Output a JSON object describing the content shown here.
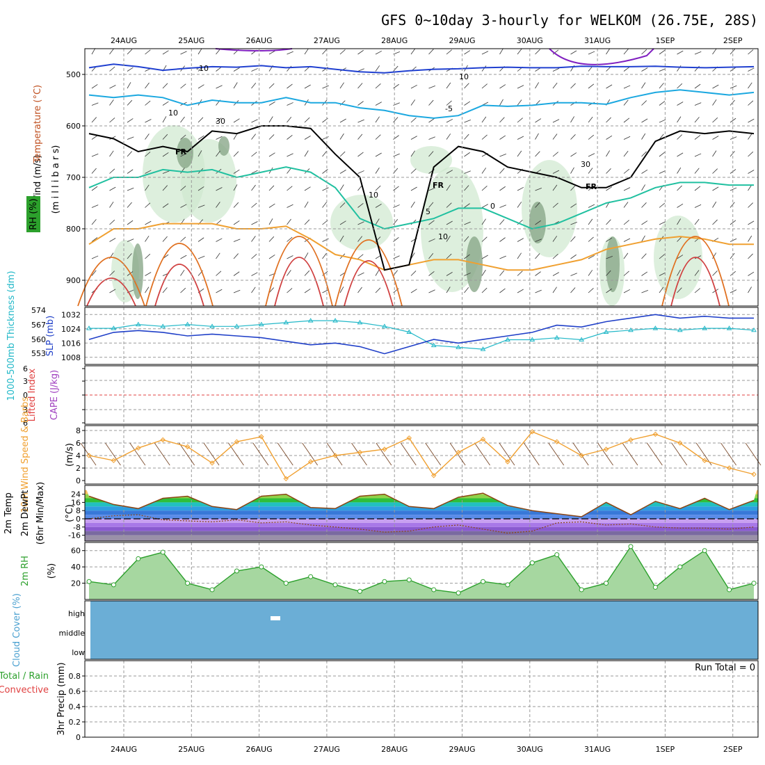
{
  "header": {
    "title": "GFS 0~10day 3-hourly for WELKOM (26.75E, 28S)"
  },
  "dates": [
    "24AUG",
    "25AUG",
    "26AUG",
    "27AUG",
    "28AUG",
    "29AUG",
    "30AUG",
    "31AUG",
    "1SEP",
    "2SEP"
  ],
  "colors": {
    "cloud": "#6baed6",
    "rh_fill": "#2ca02c",
    "slp": "#1f3fc8",
    "thickness": "#22b8c8",
    "wind": "#f0a030",
    "temp_line": "#8b4513"
  },
  "chart_data": [
    {
      "id": "upper-air",
      "type": "heatmap",
      "y_label_lines": [
        "Wind (m/s)",
        "Temperature (°C)",
        "RH (%)"
      ],
      "ylabel": "(m i l l i b a r s)",
      "yticks": [
        "500",
        "600",
        "700",
        "800",
        "900"
      ],
      "ylim": [
        450,
        950
      ],
      "y_reversed": true,
      "contour_labels": [
        "-10",
        "10",
        "-5",
        "5",
        "10",
        "10",
        "30",
        "30",
        "10",
        "0"
      ],
      "freezing_label": "FR",
      "freezing_level_mb": [
        615,
        625,
        650,
        640,
        650,
        610,
        615,
        600,
        600,
        605,
        655,
        700,
        880,
        870,
        680,
        640,
        650,
        680,
        690,
        700,
        720,
        720,
        700,
        630,
        610,
        615,
        610,
        615
      ],
      "isotherms": [
        {
          "name": "-10",
          "color": "#2040d0",
          "values": [
            487,
            480,
            485,
            492,
            488,
            485,
            486,
            483,
            487,
            485,
            490,
            495,
            497,
            493,
            490,
            489,
            487,
            486,
            487,
            487,
            484,
            485,
            485,
            484,
            486,
            487,
            486,
            485
          ]
        },
        {
          "name": "-5",
          "color": "#1ba8e0",
          "values": [
            540,
            545,
            540,
            545,
            560,
            550,
            555,
            555,
            545,
            555,
            555,
            565,
            570,
            580,
            585,
            580,
            560,
            562,
            560,
            555,
            555,
            558,
            545,
            535,
            530,
            535,
            540,
            535
          ]
        },
        {
          "name": "0",
          "color": "#20c0a0",
          "values": [
            720,
            700,
            700,
            685,
            690,
            685,
            700,
            690,
            680,
            690,
            720,
            780,
            800,
            790,
            780,
            760,
            760,
            780,
            800,
            790,
            770,
            750,
            740,
            720,
            710,
            710,
            715,
            715
          ]
        },
        {
          "name": "5",
          "color": "#f0a030",
          "values": [
            830,
            800,
            800,
            790,
            790,
            790,
            800,
            800,
            795,
            820,
            850,
            860,
            880,
            870,
            860,
            860,
            870,
            880,
            880,
            870,
            860,
            840,
            830,
            820,
            815,
            820,
            830,
            830
          ]
        }
      ]
    },
    {
      "id": "slp-thickness",
      "type": "line",
      "left_label": "1000-500mb Thickness (dm)",
      "right_label": "SLP (mb)",
      "yticks_left": [
        "574",
        "567",
        "560",
        "553"
      ],
      "yticks_right": [
        "1032",
        "1024",
        "1016",
        "1008"
      ],
      "series": [
        {
          "name": "SLP (mb)",
          "values": [
            1018,
            1022,
            1023,
            1022,
            1020,
            1021,
            1020,
            1019,
            1017,
            1015,
            1016,
            1014,
            1010,
            1014,
            1018,
            1016,
            1018,
            1020,
            1022,
            1026,
            1025,
            1028,
            1030,
            1032,
            1030,
            1031,
            1030,
            1030
          ]
        },
        {
          "name": "1000-500mb Thickness (dm)",
          "values": [
            567,
            567,
            569,
            568,
            569,
            568,
            568,
            569,
            570,
            571,
            571,
            570,
            568,
            565,
            558,
            557,
            556,
            561,
            561,
            562,
            561,
            565,
            566,
            567,
            566,
            567,
            567,
            566
          ]
        }
      ]
    },
    {
      "id": "cape-li",
      "type": "line",
      "left_label_1": "Lifted Index",
      "left_label_2": "CAPE (J/kg)",
      "yticks": [
        "6",
        "3",
        "0",
        "3",
        "6"
      ],
      "ylim": [
        -6,
        6
      ],
      "series": [
        {
          "name": "Lifted Index",
          "values": [
            0,
            0,
            0,
            0,
            0,
            0,
            0,
            0,
            0,
            0,
            0,
            0,
            0,
            0,
            0,
            0,
            0,
            0,
            0,
            0,
            0,
            0,
            0,
            0,
            0,
            0,
            0,
            0
          ]
        }
      ]
    },
    {
      "id": "wind10m",
      "type": "line",
      "left_label": "10m Wind Speed & Barbs",
      "unit": "(m/s)",
      "yticks": [
        "8",
        "6",
        "4",
        "2",
        "0"
      ],
      "ylim": [
        0,
        8.5
      ],
      "series": [
        {
          "name": "10m Wind Speed",
          "values": [
            4.0,
            3.2,
            5.2,
            6.5,
            5.4,
            2.8,
            6.2,
            7.0,
            0.3,
            3.0,
            4.0,
            4.5,
            5.0,
            6.8,
            0.8,
            4.5,
            6.6,
            3.0,
            7.8,
            6.2,
            4.0,
            5.0,
            6.5,
            7.4,
            6.0,
            3.2,
            2.0,
            1.0
          ]
        }
      ]
    },
    {
      "id": "temp2m",
      "type": "area",
      "left_label_lines": [
        "2m Temp",
        "2m DewPt",
        "(6hr Min/Max)"
      ],
      "unit": "(°C)",
      "yticks": [
        "24",
        "16",
        "8",
        "0",
        "-8",
        "-16"
      ],
      "ylim": [
        -22,
        30
      ],
      "series": [
        {
          "name": "2m Temp",
          "values": [
            22,
            14,
            10,
            20,
            22,
            12,
            9,
            22,
            24,
            11,
            10,
            22,
            24,
            12,
            10,
            21,
            25,
            13,
            8,
            5,
            2,
            16,
            4,
            17,
            10,
            20,
            9,
            18
          ]
        },
        {
          "name": "2m DewPt",
          "values": [
            0,
            3,
            4,
            -1,
            -2,
            -3,
            -1,
            -4,
            -3,
            -6,
            -8,
            -10,
            -13,
            -12,
            -8,
            -6,
            -10,
            -14,
            -12,
            -4,
            -3,
            -6,
            -5,
            -8,
            -9,
            -9,
            -10,
            -8
          ]
        }
      ]
    },
    {
      "id": "rh2m",
      "type": "area",
      "left_label": "2m RH",
      "unit": "(%)",
      "yticks": [
        "60",
        "40",
        "20"
      ],
      "ylim": [
        0,
        70
      ],
      "series": [
        {
          "name": "2m RH",
          "values": [
            22,
            18,
            50,
            58,
            20,
            12,
            35,
            40,
            20,
            28,
            18,
            10,
            22,
            24,
            12,
            8,
            22,
            18,
            45,
            55,
            12,
            20,
            65,
            15,
            40,
            60,
            12,
            20
          ]
        }
      ]
    },
    {
      "id": "cloud",
      "type": "heatmap",
      "left_label": "Cloud Cover (%)",
      "levels": [
        "high",
        "middle",
        "low"
      ]
    },
    {
      "id": "precip",
      "type": "bar",
      "left_label_lines": [
        "Total / Rain",
        "Convective"
      ],
      "ylabel": "3hr Precip (mm)",
      "yticks": [
        "0.8",
        "0.6",
        "0.4",
        "0.2",
        "0"
      ],
      "ylim": [
        0,
        1
      ],
      "run_total": "Run Total = 0",
      "values": [
        0,
        0,
        0,
        0,
        0,
        0,
        0,
        0,
        0,
        0,
        0,
        0,
        0,
        0,
        0,
        0,
        0,
        0,
        0,
        0,
        0,
        0,
        0,
        0,
        0,
        0,
        0,
        0
      ]
    }
  ]
}
